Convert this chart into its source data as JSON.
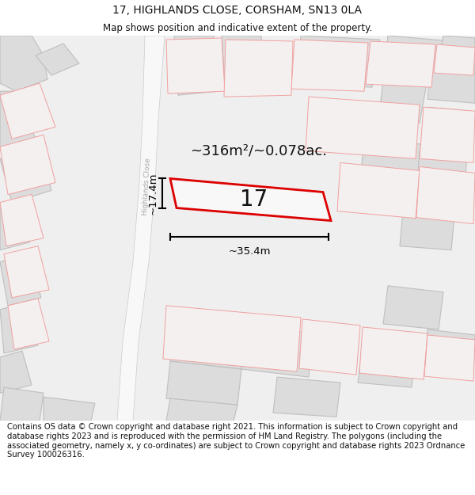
{
  "title": "17, HIGHLANDS CLOSE, CORSHAM, SN13 0LA",
  "subtitle": "Map shows position and indicative extent of the property.",
  "footer": "Contains OS data © Crown copyright and database right 2021. This information is subject to Crown copyright and database rights 2023 and is reproduced with the permission of HM Land Registry. The polygons (including the associated geometry, namely x, y co-ordinates) are subject to Crown copyright and database rights 2023 Ordnance Survey 100026316.",
  "map_bg": "#f0efef",
  "road_color": "#e8e6e6",
  "building_fill": "#dddcdc",
  "building_edge": "#c0bfbf",
  "plot_outline_color": "#e8000000",
  "plot_fill": "#f8f8f8",
  "dim_line_color": "#000000",
  "other_plot_edge": "#f0a0a0",
  "other_plot_fill": "#f5f0f0",
  "area_text": "~316m²/~0.078ac.",
  "label_17": "17",
  "dim_width": "~35.4m",
  "dim_height": "~17.4m",
  "road_label": "Highlands Close",
  "title_fontsize": 10,
  "subtitle_fontsize": 8.5,
  "footer_fontsize": 7.2
}
